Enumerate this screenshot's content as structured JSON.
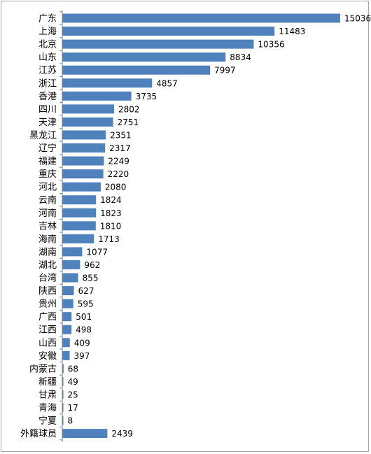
{
  "chart_data": {
    "type": "bar",
    "orientation": "horizontal",
    "title": "",
    "xlabel": "",
    "ylabel": "",
    "grid": false,
    "legend": "none",
    "color": "#4F81BD",
    "xlim": [
      0,
      15036
    ],
    "categories": [
      "广东",
      "上海",
      "北京",
      "山东",
      "江苏",
      "浙江",
      "香港",
      "四川",
      "天津",
      "黑龙江",
      "辽宁",
      "福建",
      "重庆",
      "河北",
      "云南",
      "河南",
      "吉林",
      "海南",
      "湖南",
      "湖北",
      "台湾",
      "陕西",
      "贵州",
      "广西",
      "江西",
      "山西",
      "安徽",
      "内蒙古",
      "新疆",
      "甘肃",
      "青海",
      "宁夏",
      "外籍球员"
    ],
    "values": [
      15036,
      11483,
      10356,
      8834,
      7997,
      4857,
      3735,
      2802,
      2751,
      2351,
      2317,
      2249,
      2220,
      2080,
      1824,
      1823,
      1810,
      1713,
      1077,
      962,
      855,
      627,
      595,
      501,
      498,
      409,
      397,
      68,
      49,
      25,
      17,
      8,
      2439
    ]
  }
}
